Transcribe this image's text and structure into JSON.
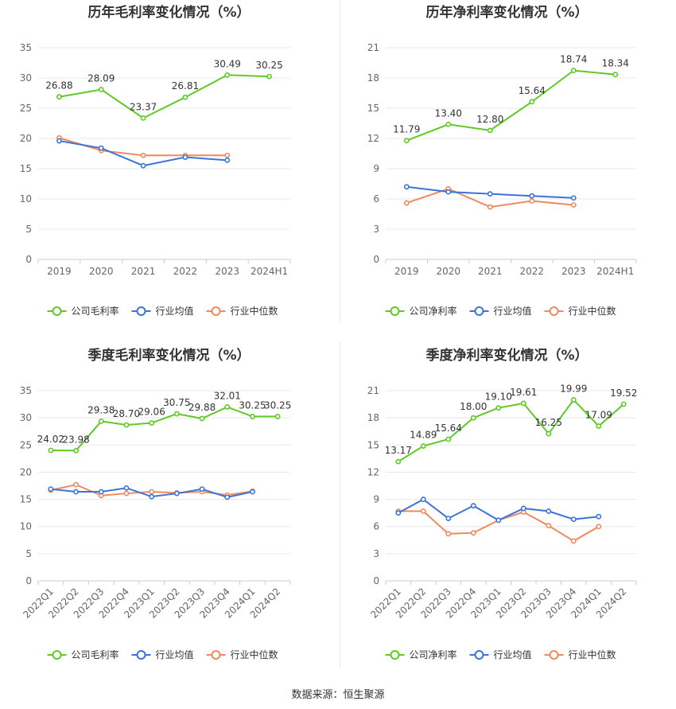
{
  "source": "数据来源：恒生聚源",
  "colors": {
    "company": "#5fc926",
    "avg": "#3b74d8",
    "median": "#f08a5d"
  },
  "chart_data": [
    {
      "id": "annual-gross",
      "type": "line",
      "title": "历年毛利率变化情况（%）",
      "categories": [
        "2019",
        "2020",
        "2021",
        "2022",
        "2023",
        "2024H1"
      ],
      "ylim": [
        0,
        35
      ],
      "yticks": [
        0,
        5,
        10,
        15,
        20,
        25,
        30,
        35
      ],
      "legend_position": "bottom",
      "series": [
        {
          "key": "company",
          "name": "公司毛利率",
          "labeled": true,
          "values": [
            26.88,
            28.09,
            23.37,
            26.81,
            30.49,
            30.25
          ]
        },
        {
          "key": "avg",
          "name": "行业均值",
          "labeled": false,
          "values": [
            19.6,
            18.4,
            15.5,
            16.9,
            16.4,
            null
          ]
        },
        {
          "key": "median",
          "name": "行业中位数",
          "labeled": false,
          "values": [
            20.1,
            18.0,
            17.2,
            17.2,
            17.2,
            null
          ]
        }
      ]
    },
    {
      "id": "annual-net",
      "type": "line",
      "title": "历年净利率变化情况（%）",
      "categories": [
        "2019",
        "2020",
        "2021",
        "2022",
        "2023",
        "2024H1"
      ],
      "ylim": [
        0,
        21
      ],
      "yticks": [
        0,
        3,
        6,
        9,
        12,
        15,
        18,
        21
      ],
      "legend_position": "bottom",
      "series": [
        {
          "key": "company",
          "name": "公司净利率",
          "labeled": true,
          "values": [
            11.79,
            13.4,
            12.8,
            15.64,
            18.74,
            18.34
          ]
        },
        {
          "key": "avg",
          "name": "行业均值",
          "labeled": false,
          "values": [
            7.2,
            6.7,
            6.5,
            6.3,
            6.1,
            null
          ]
        },
        {
          "key": "median",
          "name": "行业中位数",
          "labeled": false,
          "values": [
            5.6,
            7.0,
            5.2,
            5.8,
            5.4,
            null
          ]
        }
      ]
    },
    {
      "id": "quarter-gross",
      "type": "line",
      "title": "季度毛利率变化情况（%）",
      "categories": [
        "2022Q1",
        "2022Q2",
        "2022Q3",
        "2022Q4",
        "2023Q1",
        "2023Q2",
        "2023Q3",
        "2023Q4",
        "2024Q1",
        "2024Q2"
      ],
      "ylim": [
        0,
        35
      ],
      "yticks": [
        0,
        5,
        10,
        15,
        20,
        25,
        30,
        35
      ],
      "legend_position": "bottom",
      "series": [
        {
          "key": "company",
          "name": "公司毛利率",
          "labeled": true,
          "values": [
            24.02,
            23.98,
            29.38,
            28.7,
            29.06,
            30.75,
            29.88,
            32.01,
            30.25,
            30.25
          ]
        },
        {
          "key": "avg",
          "name": "行业均值",
          "labeled": false,
          "values": [
            16.9,
            16.4,
            16.4,
            17.1,
            15.5,
            16.1,
            16.9,
            15.4,
            16.4,
            null
          ]
        },
        {
          "key": "median",
          "name": "行业中位数",
          "labeled": false,
          "values": [
            16.7,
            17.7,
            15.7,
            16.1,
            16.4,
            16.2,
            16.4,
            15.8,
            16.5,
            null
          ]
        }
      ]
    },
    {
      "id": "quarter-net",
      "type": "line",
      "title": "季度净利率变化情况（%）",
      "categories": [
        "2022Q1",
        "2022Q2",
        "2022Q3",
        "2022Q4",
        "2023Q1",
        "2023Q2",
        "2023Q3",
        "2023Q4",
        "2024Q1",
        "2024Q2"
      ],
      "ylim": [
        0,
        21
      ],
      "yticks": [
        0,
        3,
        6,
        9,
        12,
        15,
        18,
        21
      ],
      "legend_position": "bottom",
      "series": [
        {
          "key": "company",
          "name": "公司净利率",
          "labeled": true,
          "values": [
            13.17,
            14.89,
            15.64,
            18.0,
            19.1,
            19.61,
            16.25,
            19.99,
            17.09,
            19.52
          ]
        },
        {
          "key": "avg",
          "name": "行业均值",
          "labeled": false,
          "values": [
            7.5,
            9.0,
            6.9,
            8.3,
            6.7,
            8.0,
            7.7,
            6.8,
            7.1,
            null
          ]
        },
        {
          "key": "median",
          "name": "行业中位数",
          "labeled": false,
          "values": [
            7.7,
            7.7,
            5.2,
            5.3,
            6.7,
            7.6,
            6.1,
            4.4,
            6.0,
            null
          ]
        }
      ]
    }
  ]
}
